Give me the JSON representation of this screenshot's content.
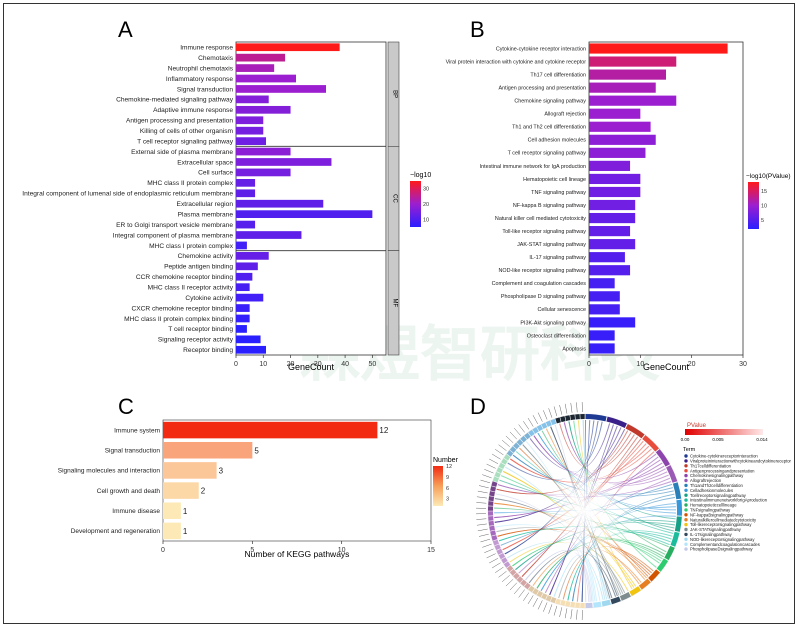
{
  "panels": {
    "A": {
      "letter": "A",
      "chart_data": {
        "type": "bar",
        "orientation": "horizontal",
        "categories": [
          "Immune response",
          "Chemotaxis",
          "Neutrophil chemotaxis",
          "Inflammatory response",
          "Signal transduction",
          "Chemokine-mediated signaling pathway",
          "Adaptive immune response",
          "Antigen processing and presentation",
          "Killing of cells of other organism",
          "T cell receptor signaling pathway",
          "External side of plasma membrane",
          "Extracellular space",
          "Cell surface",
          "MHC class II protein complex",
          "Integral component of lumenal side of endoplasmic reticulum membrane",
          "Extracellular region",
          "Plasma membrane",
          "ER to Golgi transport vesicle membrane",
          "Integral component of plasma membrane",
          "MHC class I protein complex",
          "Chemokine activity",
          "Peptide antigen binding",
          "CCR chemokine receptor binding",
          "MHC class II receptor activity",
          "Cytokine activity",
          "CXCR chemokine receptor binding",
          "MHC class II protein complex binding",
          "T cell receptor binding",
          "Signaling receptor activity",
          "Receptor binding"
        ],
        "values": [
          38,
          18,
          14,
          22,
          33,
          12,
          20,
          10,
          10,
          11,
          20,
          35,
          20,
          7,
          7,
          32,
          50,
          7,
          24,
          4,
          12,
          8,
          6,
          5,
          10,
          5,
          5,
          4,
          9,
          11
        ],
        "color_values": [
          35,
          25,
          22,
          20,
          20,
          17,
          17,
          16,
          15,
          14,
          18,
          16,
          15,
          13,
          12,
          12,
          10,
          11,
          12,
          8,
          13,
          12,
          10,
          9,
          8,
          7,
          6,
          5,
          5,
          5
        ],
        "groups": [
          {
            "name": "BP",
            "start": 0,
            "end": 9
          },
          {
            "name": "CC",
            "start": 10,
            "end": 19
          },
          {
            "name": "MF",
            "start": 20,
            "end": 29
          }
        ],
        "xlabel": "GeneCount",
        "xlim": [
          0,
          55
        ],
        "xticks": [
          0,
          10,
          20,
          30,
          40,
          50
        ],
        "legend_title": "−log10",
        "legend_ticks": [
          30,
          20,
          10
        ],
        "color_range": [
          5,
          35
        ],
        "color_low": "#2a1fff",
        "color_high": "#ff1a1a"
      }
    },
    "B": {
      "letter": "B",
      "chart_data": {
        "type": "bar",
        "orientation": "horizontal",
        "categories": [
          "Cytokine-cytokine receptor interaction",
          "Viral protein interaction with cytokine and cytokine receptor",
          "Th17 cell differentiation",
          "Antigen processing and presentation",
          "Chemokine signaling pathway",
          "Allograft rejection",
          "Th1 and Th2 cell differentiation",
          "Cell adhesion molecules",
          "T cell receptor signaling pathway",
          "Intestinal immune network for IgA production",
          "Hematopoietic cell lineage",
          "TNF signaling pathway",
          "NF-kappa B signaling pathway",
          "Natural killer cell mediated cytotoxicity",
          "Toll-like receptor signaling pathway",
          "JAK-STAT signaling pathway",
          "IL-17 signaling pathway",
          "NOD-like receptor signaling pathway",
          "Complement and coagulation cascades",
          "Phospholipase D signaling pathway",
          "Cellular senescence",
          "PI3K-Akt signaling pathway",
          "Osteoclast differentiation",
          "Apoptosis"
        ],
        "values": [
          27,
          17,
          15,
          13,
          17,
          10,
          12,
          13,
          11,
          8,
          10,
          10,
          9,
          9,
          8,
          9,
          7,
          8,
          5,
          6,
          6,
          9,
          5,
          5
        ],
        "color_values": [
          18,
          14,
          12,
          11,
          10,
          10,
          10,
          9,
          9,
          8,
          7,
          7,
          7,
          6,
          6,
          6,
          5,
          5,
          4,
          4,
          4,
          3,
          3,
          3
        ],
        "xlabel": "GeneCount",
        "xlim": [
          0,
          30
        ],
        "xticks": [
          0,
          10,
          20,
          30
        ],
        "legend_title": "−log10(PValue)",
        "legend_ticks": [
          15,
          10,
          5
        ],
        "color_range": [
          2,
          18
        ],
        "color_low": "#2a1fff",
        "color_high": "#ff1a1a"
      }
    },
    "C": {
      "letter": "C",
      "chart_data": {
        "type": "bar",
        "orientation": "horizontal",
        "categories": [
          "Immune system",
          "Signal transduction",
          "Signaling molecules and interaction",
          "Cell growth and death",
          "Immune disease",
          "Development and regeneration"
        ],
        "values": [
          12,
          5,
          3,
          2,
          1,
          1
        ],
        "data_labels": [
          "12",
          "5",
          "3",
          "2",
          "1",
          "1"
        ],
        "xlabel": "Number of KEGG pathways",
        "xlim": [
          0,
          15
        ],
        "xticks": [
          0,
          5,
          10,
          15
        ],
        "legend_title": "Number",
        "legend_ticks": [
          12,
          9,
          6,
          3
        ],
        "color_range": [
          1,
          12
        ],
        "color_low": "#fde9b6",
        "color_high": "#f22a12"
      }
    },
    "D": {
      "letter": "D",
      "legend_pvalue_title": "PValue",
      "legend_pvalue_ticks": [
        "0.00",
        "0.005",
        "0.014"
      ],
      "legend_term_title": "Term",
      "terms": [
        {
          "label": "Cytokine-cytokinereceptorinteraction",
          "color": "#1f3a93"
        },
        {
          "label": "Viralproteininteractionwithcytokineandcytokinereceptor",
          "color": "#3a1f8a"
        },
        {
          "label": "Th17celldifferentiation",
          "color": "#c0392b"
        },
        {
          "label": "Antigenprocessingandpresentation",
          "color": "#e74c3c"
        },
        {
          "label": "Chemokinesignalingpathway",
          "color": "#8e44ad"
        },
        {
          "label": "Allograftrejection",
          "color": "#9b59b6"
        },
        {
          "label": "Th1andTh2celldifferentiation",
          "color": "#2980b9"
        },
        {
          "label": "Celladhesionmolecules",
          "color": "#3498db"
        },
        {
          "label": "Tcellreceptorsignalingpathway",
          "color": "#16a085"
        },
        {
          "label": "IntestinalimmunenetworkforIgAproduction",
          "color": "#1abc9c"
        },
        {
          "label": "Hematopoieticcelllineage",
          "color": "#27ae60"
        },
        {
          "label": "TNFsignalingpathway",
          "color": "#2ecc71"
        },
        {
          "label": "NF-kappaBsignalingpathway",
          "color": "#d35400"
        },
        {
          "label": "Naturalkillercellmediatedcytotoxicity",
          "color": "#e67e22"
        },
        {
          "label": "Toll-likereceptorsignalingpathway",
          "color": "#f1c40f"
        },
        {
          "label": "JAK-STATsignalingpathway",
          "color": "#7f8c8d"
        },
        {
          "label": "IL-17signalingpathway",
          "color": "#34495e"
        },
        {
          "label": "NOD-likereceptorsignalingpathway",
          "color": "#a0d8ef"
        },
        {
          "label": "Complementandcoagulationcascades",
          "color": "#b3e5fc"
        },
        {
          "label": "PhospholipaseDsignalingpathway",
          "color": "#c5cae9"
        }
      ]
    }
  },
  "watermark": "森煜智研科技"
}
